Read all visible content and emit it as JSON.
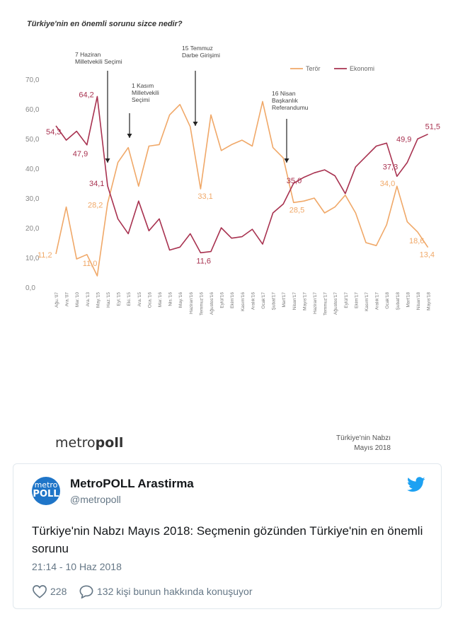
{
  "chart": {
    "title": "Türkiye'nin en önemli sorunu sizce nedir?",
    "brand_left": "metro",
    "brand_right": "poll",
    "footer_line1": "Türkiye'nin Nabzı",
    "footer_line2": "Mayıs 2018"
  },
  "chart_data": {
    "type": "line",
    "title": "Türkiye'nin en önemli sorunu sizce nedir?",
    "ylim": [
      0,
      70
    ],
    "y_ticks": [
      "0,0",
      "10,0",
      "20,0",
      "30,0",
      "40,0",
      "50,0",
      "60,0",
      "70,0"
    ],
    "legend_position": "top-right",
    "categories": [
      "Ağu.'07",
      "Ara.'07",
      "Mar.'10",
      "Ara.'13",
      "May.'15",
      "Haz.'15",
      "Eyl.'15",
      "Eki.'15",
      "Ara.'15",
      "Oca.'16",
      "Mar.'16",
      "Nis.'16",
      "May.'16",
      "Haziran'16",
      "Temmuz'16",
      "Ağustos'16",
      "Eylül'16",
      "Ekim'16",
      "Kasım'16",
      "Aralık'16",
      "Ocak'17",
      "Şubat'17",
      "Mart'17",
      "Nisan'17",
      "Mayıs'17",
      "Haziran'17",
      "Temmuz'17",
      "Ağustos'17",
      "Eylül'17",
      "Ekim'17",
      "Kasım'17",
      "Aralık'17",
      "Ocak'18",
      "Şubat'18",
      "Mart'18",
      "Nisan'18",
      "Mayıs'18"
    ],
    "series": [
      {
        "name": "Terör",
        "color": "#f0a868",
        "values": [
          11.2,
          27,
          9.5,
          11.0,
          3.8,
          28.2,
          42,
          47,
          34,
          47.5,
          48,
          58,
          61.5,
          54,
          33.1,
          58,
          46,
          48,
          49.5,
          47.5,
          62.5,
          47,
          43.5,
          28.5,
          29,
          30,
          25,
          27,
          31,
          25,
          15,
          14,
          21,
          34.0,
          22,
          18.6,
          13.4
        ]
      },
      {
        "name": "Ekonomi",
        "color": "#a83250",
        "values": [
          54.3,
          49.5,
          52.5,
          47.9,
          64.2,
          34.1,
          23,
          18,
          29,
          19,
          23,
          12.5,
          13.5,
          18,
          11.6,
          12,
          20,
          16.5,
          17,
          19.5,
          14.5,
          25,
          28,
          35.0,
          37,
          38.5,
          39.5,
          37.5,
          31.5,
          40.5,
          44,
          47.5,
          48.5,
          37.3,
          42,
          49.9,
          51.5
        ]
      }
    ],
    "data_labels": [
      {
        "series": "Terör",
        "index": 0,
        "text": "11,2"
      },
      {
        "series": "Terör",
        "index": 3,
        "text": "11,0"
      },
      {
        "series": "Terör",
        "index": 5,
        "text": "28,2"
      },
      {
        "series": "Terör",
        "index": 14,
        "text": "33,1"
      },
      {
        "series": "Terör",
        "index": 23,
        "text": "28,5"
      },
      {
        "series": "Terör",
        "index": 33,
        "text": "34,0"
      },
      {
        "series": "Terör",
        "index": 35,
        "text": "18,6"
      },
      {
        "series": "Terör",
        "index": 36,
        "text": "13,4"
      },
      {
        "series": "Ekonomi",
        "index": 0,
        "text": "54,3"
      },
      {
        "series": "Ekonomi",
        "index": 3,
        "text": "47,9"
      },
      {
        "series": "Ekonomi",
        "index": 4,
        "text": "64,2"
      },
      {
        "series": "Ekonomi",
        "index": 5,
        "text": "34,1"
      },
      {
        "series": "Ekonomi",
        "index": 14,
        "text": "11,6"
      },
      {
        "series": "Ekonomi",
        "index": 23,
        "text": "35,0"
      },
      {
        "series": "Ekonomi",
        "index": 33,
        "text": "37,3"
      },
      {
        "series": "Ekonomi",
        "index": 35,
        "text": "49,9"
      },
      {
        "series": "Ekonomi",
        "index": 36,
        "text": "51,5"
      }
    ],
    "annotations": [
      {
        "lines": [
          "7 Haziran",
          "Milletvekili Seçimi"
        ],
        "index": 5
      },
      {
        "lines": [
          "1 Kasım",
          "Milletvekili",
          "Seçimi"
        ],
        "index": 7
      },
      {
        "lines": [
          "15 Temmuz",
          "Darbe Girişimi"
        ],
        "index": 13
      },
      {
        "lines": [
          "16 Nisan",
          "Başkanlık",
          "Referandumu"
        ],
        "index": 23
      }
    ]
  },
  "tweet": {
    "avatar_line1": "metro",
    "avatar_line2": "POLL",
    "author_name": "MetroPOLL Arastirma",
    "author_handle": "@metropoll",
    "text": "Türkiye'nin Nabzı Mayıs 2018: Seçmenin gözünden Türkiye'nin en önemli sorunu",
    "time": "21:14 - 10 Haz 2018",
    "likes": "228",
    "replies": "132 kişi bunun hakkında konuşuyor"
  },
  "colors": {
    "teror": "#f0a868",
    "ekonomi": "#a83250",
    "twitter_blue": "#1da1f2",
    "avatar_blue": "#1f75c8"
  }
}
